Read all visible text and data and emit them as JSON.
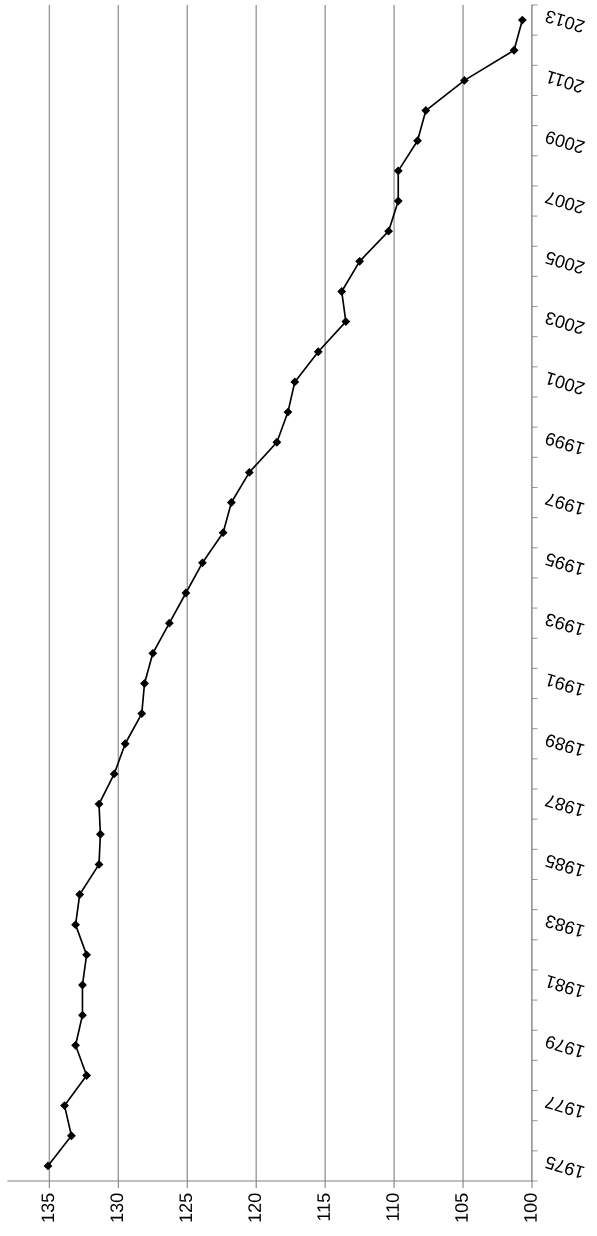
{
  "chart_data": {
    "type": "line",
    "orientation": "horizontal",
    "categories": [
      "2013",
      null,
      "2011",
      null,
      "2009",
      null,
      "2007",
      null,
      "2005",
      null,
      "2003",
      null,
      "2001",
      null,
      "1999",
      null,
      "1997",
      null,
      "1995",
      null,
      "1993",
      null,
      "1991",
      null,
      "1989",
      null,
      "1987",
      null,
      "1985",
      null,
      "1983",
      null,
      "1981",
      null,
      "1979",
      null,
      "1977",
      null,
      "1975"
    ],
    "series": [
      {
        "color": "#000000",
        "values": [
          100.7,
          101.3,
          104.9,
          107.7,
          108.3,
          109.7,
          109.7,
          110.4,
          112.5,
          113.8,
          113.5,
          115.5,
          117.2,
          117.7,
          118.5,
          120.5,
          121.8,
          122.4,
          123.9,
          125.1,
          126.3,
          127.5,
          128.1,
          128.3,
          129.5,
          130.3,
          131.4,
          131.3,
          131.4,
          132.8,
          133.1,
          132.3,
          132.6,
          132.6,
          133.1,
          132.3,
          133.9,
          133.4,
          135.1
        ]
      }
    ],
    "xlim": [
      138,
      100
    ],
    "xticks": [
      135,
      130,
      125,
      120,
      115,
      110,
      105,
      100
    ],
    "grid": "x",
    "marker": "diamond",
    "line_style": "solid"
  }
}
